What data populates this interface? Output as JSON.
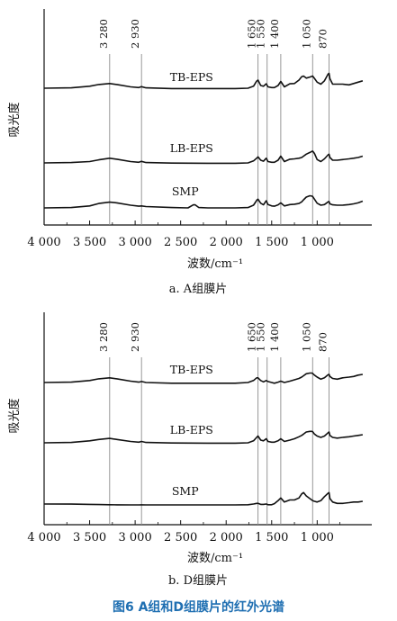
{
  "figure_caption": "图6   A组和D组膜片的红外光谱",
  "colors": {
    "curve": "#111111",
    "axis": "#111111",
    "guide": "#8c8c8c",
    "caption": "#1f6fb2"
  },
  "chart_data": [
    {
      "type": "line",
      "caption": "a. A组膜片",
      "xlabel": "波数/cm⁻¹",
      "ylabel": "吸光度",
      "xlim": [
        4000,
        400
      ],
      "x_reversed": true,
      "xticks": [
        4000,
        3500,
        3000,
        2500,
        2000,
        1500,
        1000
      ],
      "xtick_labels": [
        "4 000",
        "3 500",
        "3 000",
        "2 500",
        "2 000",
        "1 500",
        "1 000"
      ],
      "ylim": [
        0,
        1
      ],
      "reference_lines": [
        {
          "x": 3280,
          "label": "3 280"
        },
        {
          "x": 2930,
          "label": "2 930"
        },
        {
          "x": 1650,
          "label": "1 650"
        },
        {
          "x": 1550,
          "label": "1 550"
        },
        {
          "x": 1400,
          "label": "1 400"
        },
        {
          "x": 1050,
          "label": "1 050"
        },
        {
          "x": 870,
          "label": "870"
        }
      ],
      "series": [
        {
          "name": "TB-EPS",
          "label_x": 2380,
          "x": [
            4000,
            3700,
            3500,
            3400,
            3280,
            3200,
            3050,
            2960,
            2930,
            2880,
            2600,
            2200,
            1900,
            1760,
            1700,
            1665,
            1650,
            1620,
            1590,
            1560,
            1540,
            1500,
            1470,
            1430,
            1400,
            1360,
            1300,
            1250,
            1200,
            1170,
            1150,
            1120,
            1080,
            1060,
            1050,
            1030,
            1000,
            960,
            920,
            880,
            870,
            860,
            830,
            780,
            720,
            650,
            600,
            550,
            500
          ],
          "y": [
            0.84,
            0.845,
            0.87,
            0.895,
            0.91,
            0.895,
            0.86,
            0.85,
            0.862,
            0.845,
            0.835,
            0.835,
            0.835,
            0.84,
            0.87,
            0.945,
            0.96,
            0.88,
            0.87,
            0.905,
            0.86,
            0.85,
            0.85,
            0.88,
            0.94,
            0.86,
            0.905,
            0.91,
            0.96,
            1.01,
            1.02,
            0.99,
            1.005,
            1.015,
            1.02,
            0.985,
            0.93,
            0.9,
            0.95,
            1.05,
            1.06,
            0.98,
            0.9,
            0.9,
            0.9,
            0.89,
            0.91,
            0.93,
            0.95
          ]
        },
        {
          "name": "LB-EPS",
          "label_x": 2380,
          "x": [
            4000,
            3700,
            3500,
            3400,
            3280,
            3200,
            3050,
            2960,
            2930,
            2880,
            2600,
            2200,
            1900,
            1760,
            1700,
            1660,
            1650,
            1620,
            1590,
            1560,
            1540,
            1500,
            1470,
            1430,
            1400,
            1360,
            1300,
            1250,
            1200,
            1170,
            1150,
            1120,
            1080,
            1060,
            1050,
            1030,
            1000,
            960,
            920,
            880,
            870,
            860,
            830,
            780,
            720,
            650,
            600,
            550,
            500
          ],
          "y": [
            0.5,
            0.505,
            0.52,
            0.545,
            0.57,
            0.555,
            0.52,
            0.51,
            0.522,
            0.505,
            0.497,
            0.495,
            0.495,
            0.5,
            0.53,
            0.575,
            0.59,
            0.54,
            0.525,
            0.57,
            0.52,
            0.51,
            0.51,
            0.54,
            0.6,
            0.52,
            0.555,
            0.56,
            0.57,
            0.58,
            0.6,
            0.63,
            0.655,
            0.67,
            0.675,
            0.64,
            0.55,
            0.52,
            0.56,
            0.62,
            0.63,
            0.58,
            0.54,
            0.54,
            0.55,
            0.56,
            0.57,
            0.58,
            0.6
          ]
        },
        {
          "name": "SMP",
          "label_x": 2450,
          "x": [
            4000,
            3700,
            3500,
            3400,
            3280,
            3200,
            3050,
            2960,
            2930,
            2880,
            2600,
            2420,
            2360,
            2340,
            2300,
            2200,
            1900,
            1760,
            1700,
            1660,
            1650,
            1620,
            1590,
            1560,
            1540,
            1500,
            1470,
            1430,
            1400,
            1360,
            1300,
            1250,
            1200,
            1170,
            1150,
            1120,
            1080,
            1060,
            1050,
            1030,
            1000,
            960,
            920,
            880,
            870,
            860,
            830,
            780,
            720,
            650,
            600,
            550,
            500
          ],
          "y": [
            0.17,
            0.175,
            0.2,
            0.235,
            0.255,
            0.245,
            0.21,
            0.195,
            0.2,
            0.19,
            0.175,
            0.17,
            0.215,
            0.215,
            0.175,
            0.17,
            0.17,
            0.175,
            0.21,
            0.29,
            0.3,
            0.24,
            0.215,
            0.275,
            0.22,
            0.2,
            0.195,
            0.215,
            0.245,
            0.2,
            0.22,
            0.225,
            0.235,
            0.26,
            0.29,
            0.33,
            0.35,
            0.345,
            0.34,
            0.3,
            0.24,
            0.21,
            0.22,
            0.26,
            0.265,
            0.23,
            0.215,
            0.21,
            0.21,
            0.22,
            0.23,
            0.245,
            0.27
          ]
        }
      ]
    },
    {
      "type": "line",
      "caption": "b. D组膜片",
      "xlabel": "波数/cm⁻¹",
      "ylabel": "吸光度",
      "xlim": [
        4000,
        400
      ],
      "x_reversed": true,
      "xticks": [
        4000,
        3500,
        3000,
        2500,
        2000,
        1500,
        1000
      ],
      "xtick_labels": [
        "4 000",
        "3 500",
        "3 000",
        "2 500",
        "2 000",
        "1 500",
        "1 000"
      ],
      "ylim": [
        0,
        1
      ],
      "reference_lines": [
        {
          "x": 3280,
          "label": "3 280"
        },
        {
          "x": 2930,
          "label": "2 930"
        },
        {
          "x": 1650,
          "label": "1 650"
        },
        {
          "x": 1550,
          "label": "1 550"
        },
        {
          "x": 1400,
          "label": "1 400"
        },
        {
          "x": 1050,
          "label": "1 050"
        },
        {
          "x": 870,
          "label": "870"
        }
      ],
      "series": [
        {
          "name": "TB-EPS",
          "label_x": 2380,
          "x": [
            4000,
            3700,
            3500,
            3400,
            3280,
            3200,
            3050,
            2960,
            2930,
            2880,
            2600,
            2200,
            1900,
            1760,
            1700,
            1665,
            1650,
            1620,
            1590,
            1560,
            1540,
            1500,
            1470,
            1430,
            1400,
            1360,
            1300,
            1250,
            1200,
            1170,
            1150,
            1120,
            1080,
            1060,
            1050,
            1030,
            1000,
            960,
            920,
            880,
            870,
            860,
            830,
            780,
            720,
            650,
            600,
            550,
            500
          ],
          "y": [
            0.77,
            0.775,
            0.8,
            0.825,
            0.84,
            0.825,
            0.79,
            0.775,
            0.785,
            0.77,
            0.76,
            0.76,
            0.76,
            0.77,
            0.8,
            0.84,
            0.84,
            0.8,
            0.78,
            0.8,
            0.785,
            0.77,
            0.76,
            0.775,
            0.79,
            0.77,
            0.79,
            0.81,
            0.83,
            0.85,
            0.87,
            0.9,
            0.91,
            0.91,
            0.905,
            0.88,
            0.85,
            0.82,
            0.84,
            0.885,
            0.89,
            0.86,
            0.83,
            0.82,
            0.84,
            0.85,
            0.86,
            0.88,
            0.89
          ]
        },
        {
          "name": "LB-EPS",
          "label_x": 2380,
          "x": [
            4000,
            3700,
            3500,
            3400,
            3280,
            3200,
            3050,
            2960,
            2930,
            2880,
            2600,
            2200,
            1900,
            1760,
            1700,
            1665,
            1650,
            1620,
            1590,
            1560,
            1540,
            1500,
            1470,
            1430,
            1400,
            1360,
            1300,
            1250,
            1200,
            1170,
            1150,
            1120,
            1080,
            1060,
            1050,
            1030,
            1000,
            960,
            920,
            880,
            870,
            860,
            830,
            780,
            720,
            650,
            600,
            550,
            500
          ],
          "y": [
            0.47,
            0.475,
            0.5,
            0.52,
            0.535,
            0.52,
            0.49,
            0.48,
            0.49,
            0.475,
            0.467,
            0.465,
            0.465,
            0.47,
            0.5,
            0.55,
            0.57,
            0.51,
            0.5,
            0.53,
            0.49,
            0.48,
            0.48,
            0.5,
            0.53,
            0.49,
            0.51,
            0.53,
            0.56,
            0.58,
            0.6,
            0.63,
            0.64,
            0.64,
            0.635,
            0.6,
            0.57,
            0.55,
            0.57,
            0.62,
            0.63,
            0.58,
            0.55,
            0.54,
            0.55,
            0.56,
            0.57,
            0.58,
            0.59
          ]
        },
        {
          "name": "SMP",
          "label_x": 2450,
          "x": [
            4000,
            3700,
            3500,
            3400,
            3280,
            3200,
            3050,
            2960,
            2930,
            2880,
            2600,
            2200,
            1900,
            1760,
            1700,
            1665,
            1650,
            1620,
            1590,
            1560,
            1540,
            1500,
            1470,
            1430,
            1400,
            1360,
            1300,
            1250,
            1200,
            1170,
            1150,
            1120,
            1080,
            1060,
            1050,
            1030,
            1000,
            960,
            920,
            880,
            870,
            860,
            830,
            780,
            720,
            650,
            600,
            550,
            500
          ],
          "y": [
            0.17,
            0.168,
            0.165,
            0.162,
            0.16,
            0.158,
            0.156,
            0.156,
            0.158,
            0.156,
            0.156,
            0.156,
            0.156,
            0.16,
            0.17,
            0.18,
            0.18,
            0.165,
            0.165,
            0.17,
            0.16,
            0.16,
            0.175,
            0.22,
            0.26,
            0.2,
            0.23,
            0.23,
            0.26,
            0.32,
            0.34,
            0.29,
            0.25,
            0.23,
            0.22,
            0.21,
            0.2,
            0.22,
            0.28,
            0.33,
            0.34,
            0.25,
            0.2,
            0.18,
            0.18,
            0.19,
            0.2,
            0.2,
            0.21
          ]
        }
      ]
    }
  ]
}
